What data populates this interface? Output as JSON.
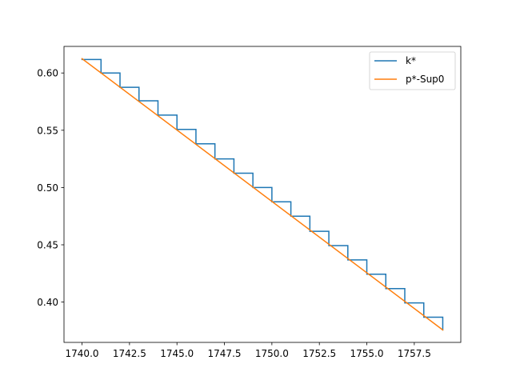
{
  "chart_data": {
    "type": "line",
    "title": "",
    "xlabel": "",
    "ylabel": "",
    "xlim": [
      1739.05,
      1759.95
    ],
    "ylim": [
      0.3648,
      0.6232
    ],
    "xticks": [
      1740.0,
      1742.5,
      1745.0,
      1747.5,
      1750.0,
      1752.5,
      1755.0,
      1757.5
    ],
    "xtick_labels": [
      "1740.0",
      "1742.5",
      "1745.0",
      "1747.5",
      "1750.0",
      "1752.5",
      "1755.0",
      "1757.5"
    ],
    "yticks": [
      0.4,
      0.45,
      0.5,
      0.55,
      0.6
    ],
    "ytick_labels": [
      "0.40",
      "0.45",
      "0.50",
      "0.55",
      "0.60"
    ],
    "grid": false,
    "legend": "top-right",
    "series": [
      {
        "name": "k*",
        "color": "#1f77b4",
        "style": "step",
        "x": [
          1740,
          1741,
          1742,
          1743,
          1744,
          1745,
          1746,
          1747,
          1748,
          1749,
          1750,
          1751,
          1752,
          1753,
          1754,
          1755,
          1756,
          1757,
          1758,
          1759
        ],
        "y": [
          0.6118,
          0.6,
          0.5875,
          0.5757,
          0.5632,
          0.5507,
          0.5382,
          0.525,
          0.5125,
          0.5,
          0.4875,
          0.475,
          0.4618,
          0.4493,
          0.4368,
          0.4243,
          0.4118,
          0.3993,
          0.3868,
          0.3757
        ]
      },
      {
        "name": "p*-Sup0",
        "color": "#ff7f0e",
        "style": "line",
        "x": [
          1740,
          1759
        ],
        "y": [
          0.6125,
          0.3757
        ]
      }
    ]
  }
}
